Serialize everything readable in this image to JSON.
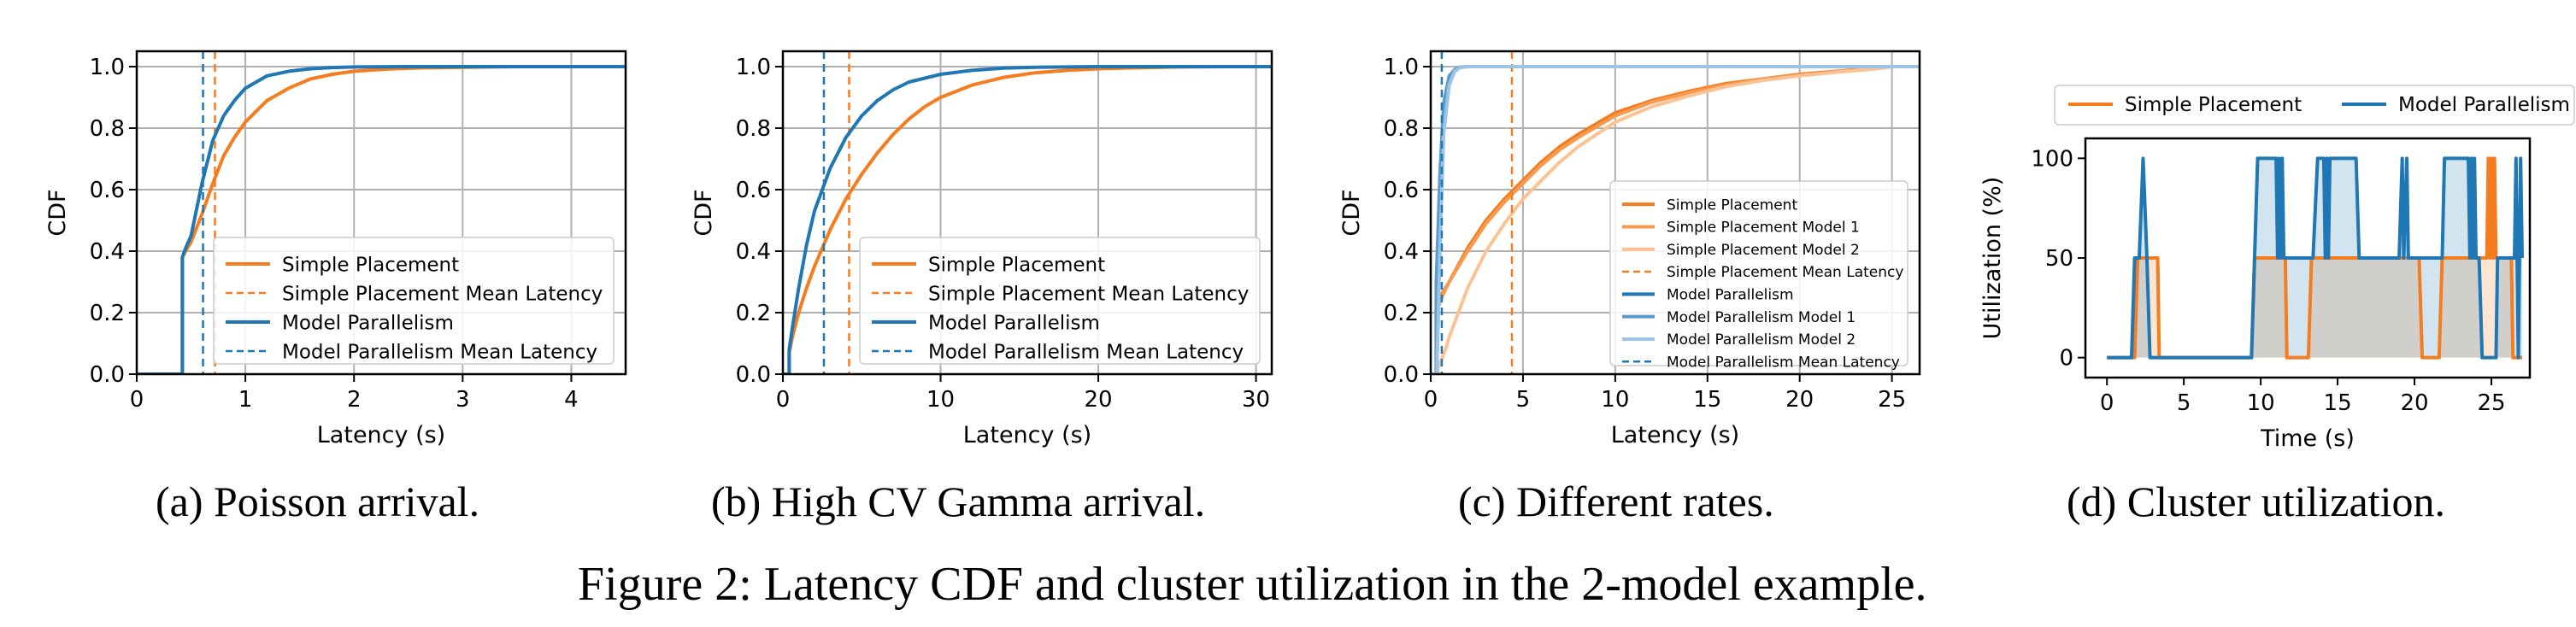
{
  "colors": {
    "simple": "#f57c1f",
    "simple_model1": "#f89a50",
    "simple_model2": "#fbc393",
    "mp": "#1f77b4",
    "mp_model1": "#5b9ccd",
    "mp_model2": "#9cc4e4",
    "grid": "#b0b0b0"
  },
  "figure": {
    "caption": "Figure 2: Latency CDF and cluster utilization in the 2-model example."
  },
  "chart_data": [
    {
      "id": "a",
      "type": "line",
      "caption": "(a) Poisson arrival.",
      "xlabel": "Latency (s)",
      "ylabel": "CDF",
      "xlim": [
        0,
        4.5
      ],
      "ylim": [
        0,
        1.05
      ],
      "xticks": [
        0,
        1,
        2,
        3,
        4
      ],
      "xtick_labels": [
        "0",
        "1",
        "2",
        "3",
        "4"
      ],
      "yticks": [
        0.0,
        0.2,
        0.4,
        0.6,
        0.8,
        1.0
      ],
      "ytick_labels": [
        "0.0",
        "0.2",
        "0.4",
        "0.6",
        "0.8",
        "1.0"
      ],
      "grid": true,
      "legend_position": "lower-right",
      "series": [
        {
          "name": "Simple Placement",
          "color_key": "simple",
          "style": "solid",
          "x": [
            0,
            0.42,
            0.42,
            0.45,
            0.5,
            0.6,
            0.7,
            0.8,
            0.9,
            1.0,
            1.2,
            1.4,
            1.6,
            1.8,
            2.0,
            2.3,
            2.6,
            3.0,
            3.5,
            4.5
          ],
          "y": [
            0,
            0,
            0.38,
            0.4,
            0.43,
            0.52,
            0.62,
            0.71,
            0.77,
            0.82,
            0.89,
            0.93,
            0.96,
            0.975,
            0.985,
            0.992,
            0.996,
            0.998,
            1.0,
            1.0
          ]
        },
        {
          "name": "Simple Placement Mean Latency",
          "color_key": "simple",
          "style": "dashed",
          "vline": 0.72
        },
        {
          "name": "Model Parallelism",
          "color_key": "mp",
          "style": "solid",
          "x": [
            0,
            0.42,
            0.42,
            0.45,
            0.5,
            0.6,
            0.7,
            0.8,
            0.9,
            1.0,
            1.2,
            1.4,
            1.6,
            1.8,
            2.0,
            2.5,
            3.0,
            4.5
          ],
          "y": [
            0,
            0,
            0.38,
            0.41,
            0.45,
            0.62,
            0.76,
            0.84,
            0.89,
            0.93,
            0.97,
            0.985,
            0.993,
            0.997,
            0.999,
            1.0,
            1.0,
            1.0
          ]
        },
        {
          "name": "Model Parallelism Mean Latency",
          "color_key": "mp",
          "style": "dashed",
          "vline": 0.61
        }
      ]
    },
    {
      "id": "b",
      "type": "line",
      "caption": "(b) High CV Gamma arrival.",
      "xlabel": "Latency (s)",
      "ylabel": "CDF",
      "xlim": [
        0,
        31
      ],
      "ylim": [
        0,
        1.05
      ],
      "xticks": [
        0,
        10,
        20,
        30
      ],
      "xtick_labels": [
        "0",
        "10",
        "20",
        "30"
      ],
      "yticks": [
        0.0,
        0.2,
        0.4,
        0.6,
        0.8,
        1.0
      ],
      "ytick_labels": [
        "0.0",
        "0.2",
        "0.4",
        "0.6",
        "0.8",
        "1.0"
      ],
      "grid": true,
      "legend_position": "lower-right",
      "series": [
        {
          "name": "Simple Placement",
          "color_key": "simple",
          "style": "solid",
          "x": [
            0,
            0.4,
            0.4,
            0.6,
            1.0,
            1.5,
            2.0,
            3.0,
            4.0,
            5.0,
            6.0,
            7.0,
            8.0,
            9.0,
            10.0,
            12.0,
            14.0,
            16.0,
            18.0,
            20.0,
            22.0,
            25.0,
            28.0,
            31.0
          ],
          "y": [
            0,
            0,
            0.07,
            0.12,
            0.2,
            0.28,
            0.35,
            0.47,
            0.57,
            0.65,
            0.72,
            0.78,
            0.83,
            0.87,
            0.9,
            0.94,
            0.965,
            0.98,
            0.988,
            0.993,
            0.996,
            0.999,
            1.0,
            1.0
          ]
        },
        {
          "name": "Simple Placement Mean Latency",
          "color_key": "simple",
          "style": "dashed",
          "vline": 4.2
        },
        {
          "name": "Model Parallelism",
          "color_key": "mp",
          "style": "solid",
          "x": [
            0,
            0.4,
            0.4,
            0.6,
            1.0,
            1.5,
            2.0,
            3.0,
            4.0,
            5.0,
            6.0,
            7.0,
            8.0,
            10.0,
            12.0,
            14.0,
            16.0,
            20.0,
            31.0
          ],
          "y": [
            0,
            0,
            0.08,
            0.15,
            0.28,
            0.42,
            0.53,
            0.67,
            0.77,
            0.84,
            0.89,
            0.925,
            0.95,
            0.975,
            0.988,
            0.995,
            0.998,
            1.0,
            1.0
          ]
        },
        {
          "name": "Model Parallelism Mean Latency",
          "color_key": "mp",
          "style": "dashed",
          "vline": 2.6
        }
      ]
    },
    {
      "id": "c",
      "type": "line",
      "caption": "(c) Different rates.",
      "xlabel": "Latency (s)",
      "ylabel": "CDF",
      "xlim": [
        0,
        26.5
      ],
      "ylim": [
        0,
        1.05
      ],
      "xticks": [
        0,
        5,
        10,
        15,
        20,
        25
      ],
      "xtick_labels": [
        "0",
        "5",
        "10",
        "15",
        "20",
        "25"
      ],
      "yticks": [
        0.0,
        0.2,
        0.4,
        0.6,
        0.8,
        1.0
      ],
      "ytick_labels": [
        "0.0",
        "0.2",
        "0.4",
        "0.6",
        "0.8",
        "1.0"
      ],
      "grid": true,
      "legend_position": "lower-right",
      "series": [
        {
          "name": "Simple Placement",
          "color_key": "simple",
          "style": "solid",
          "x": [
            0,
            0.3,
            0.3,
            0.6,
            1.0,
            2.0,
            3.0,
            4.0,
            5.0,
            6.0,
            7.0,
            8.0,
            10.0,
            12.0,
            14.0,
            16.0,
            18.0,
            20.0,
            22.0,
            24.0,
            25.0,
            26.5
          ],
          "y": [
            0,
            0,
            0.22,
            0.26,
            0.3,
            0.41,
            0.5,
            0.57,
            0.63,
            0.69,
            0.74,
            0.78,
            0.85,
            0.89,
            0.92,
            0.945,
            0.96,
            0.975,
            0.985,
            0.995,
            1.0,
            1.0
          ]
        },
        {
          "name": "Simple Placement Model 1",
          "color_key": "simple_model1",
          "style": "solid",
          "x": [
            0,
            0.3,
            0.3,
            0.6,
            1.0,
            2.0,
            3.0,
            4.0,
            5.0,
            6.0,
            7.0,
            8.0,
            10.0,
            12.0,
            14.0,
            16.0,
            18.0,
            20.0,
            22.0,
            24.0,
            25.0,
            26.5
          ],
          "y": [
            0,
            0,
            0.2,
            0.25,
            0.3,
            0.4,
            0.49,
            0.56,
            0.62,
            0.68,
            0.73,
            0.77,
            0.84,
            0.885,
            0.915,
            0.94,
            0.96,
            0.972,
            0.984,
            0.994,
            1.0,
            1.0
          ]
        },
        {
          "name": "Simple Placement Model 2",
          "color_key": "simple_model2",
          "style": "solid",
          "x": [
            0,
            0.4,
            0.4,
            0.8,
            1.0,
            2.0,
            3.0,
            4.0,
            5.0,
            6.0,
            7.0,
            8.0,
            10.0,
            12.0,
            14.0,
            16.0,
            18.0,
            20.0,
            22.0,
            24.0,
            25.0,
            26.5
          ],
          "y": [
            0,
            0,
            0.02,
            0.08,
            0.12,
            0.28,
            0.4,
            0.49,
            0.57,
            0.63,
            0.69,
            0.74,
            0.82,
            0.87,
            0.905,
            0.935,
            0.955,
            0.97,
            0.982,
            0.992,
            1.0,
            1.0
          ]
        },
        {
          "name": "Simple Placement Mean Latency",
          "color_key": "simple",
          "style": "dashed",
          "vline": 4.4
        },
        {
          "name": "Model Parallelism",
          "color_key": "mp",
          "style": "solid",
          "x": [
            0,
            0.3,
            0.3,
            0.5,
            0.7,
            1.0,
            1.3,
            1.6,
            2.0,
            3.0,
            26.5
          ],
          "y": [
            0,
            0,
            0.25,
            0.6,
            0.85,
            0.96,
            0.99,
            0.998,
            1.0,
            1.0,
            1.0
          ]
        },
        {
          "name": "Model Parallelism Model 1",
          "color_key": "mp_model1",
          "style": "solid",
          "x": [
            0,
            0.3,
            0.3,
            0.5,
            0.7,
            1.0,
            1.3,
            1.6,
            2.0,
            3.0,
            26.5
          ],
          "y": [
            0,
            0,
            0.3,
            0.65,
            0.88,
            0.97,
            0.99,
            0.998,
            1.0,
            1.0,
            1.0
          ]
        },
        {
          "name": "Model Parallelism Model 2",
          "color_key": "mp_model2",
          "style": "solid",
          "x": [
            0,
            0.35,
            0.35,
            0.5,
            0.7,
            1.0,
            1.3,
            1.6,
            2.0,
            3.0,
            26.5
          ],
          "y": [
            0,
            0,
            0.05,
            0.4,
            0.78,
            0.94,
            0.985,
            0.997,
            1.0,
            1.0,
            1.0
          ]
        },
        {
          "name": "Model Parallelism Mean Latency",
          "color_key": "mp",
          "style": "dashed",
          "vline": 0.6
        }
      ]
    },
    {
      "id": "d",
      "type": "area",
      "caption": "(d) Cluster utilization.",
      "xlabel": "Time (s)",
      "ylabel": "Utilization (%)",
      "xlim": [
        -1.4,
        27.5
      ],
      "ylim": [
        -10,
        110
      ],
      "xticks": [
        0,
        5,
        10,
        15,
        20,
        25
      ],
      "xtick_labels": [
        "0",
        "5",
        "10",
        "15",
        "20",
        "25"
      ],
      "yticks": [
        0,
        50,
        100
      ],
      "ytick_labels": [
        "0",
        "50",
        "100"
      ],
      "grid": false,
      "legend_position": "top",
      "series": [
        {
          "name": "Simple Placement",
          "color_key": "simple",
          "style": "solid",
          "x": [
            0,
            1.8,
            2.0,
            3.3,
            3.4,
            9.4,
            9.6,
            11.6,
            11.7,
            13.1,
            13.3,
            14.3,
            14.5,
            19.1,
            19.3,
            20.3,
            20.5,
            21.6,
            21.8,
            24.7,
            24.8,
            24.9,
            25.0,
            25.1,
            25.2,
            25.3,
            25.5,
            26.3,
            26.4,
            27.0
          ],
          "y": [
            0,
            0,
            50,
            50,
            0,
            0,
            50,
            50,
            0,
            0,
            50,
            50,
            50,
            50,
            50,
            50,
            0,
            0,
            50,
            50,
            100,
            50,
            100,
            50,
            100,
            50,
            50,
            50,
            0,
            0
          ]
        },
        {
          "name": "Model Parallelism",
          "color_key": "mp",
          "style": "solid",
          "x": [
            0,
            1.6,
            1.8,
            2.1,
            2.35,
            2.6,
            2.8,
            9.4,
            9.6,
            9.8,
            11.0,
            11.1,
            11.2,
            11.3,
            11.4,
            11.5,
            13.2,
            13.4,
            13.7,
            14.1,
            14.2,
            14.3,
            14.4,
            14.5,
            14.7,
            16.2,
            16.4,
            19.0,
            19.2,
            19.3,
            19.5,
            19.6,
            19.8,
            21.6,
            21.8,
            21.95,
            23.5,
            23.6,
            23.7,
            23.8,
            23.9,
            24.0,
            24.2,
            24.4,
            25.3,
            25.4,
            25.5,
            26.5,
            26.6,
            26.75,
            26.9,
            27.0
          ],
          "y": [
            0,
            0,
            50,
            50,
            100,
            50,
            0,
            0,
            50,
            100,
            100,
            50,
            100,
            50,
            100,
            50,
            50,
            50,
            100,
            100,
            50,
            100,
            50,
            100,
            100,
            100,
            50,
            50,
            100,
            50,
            100,
            50,
            50,
            50,
            50,
            100,
            100,
            50,
            100,
            50,
            100,
            50,
            50,
            0,
            0,
            50,
            50,
            50,
            100,
            0,
            100,
            50
          ]
        }
      ]
    }
  ]
}
